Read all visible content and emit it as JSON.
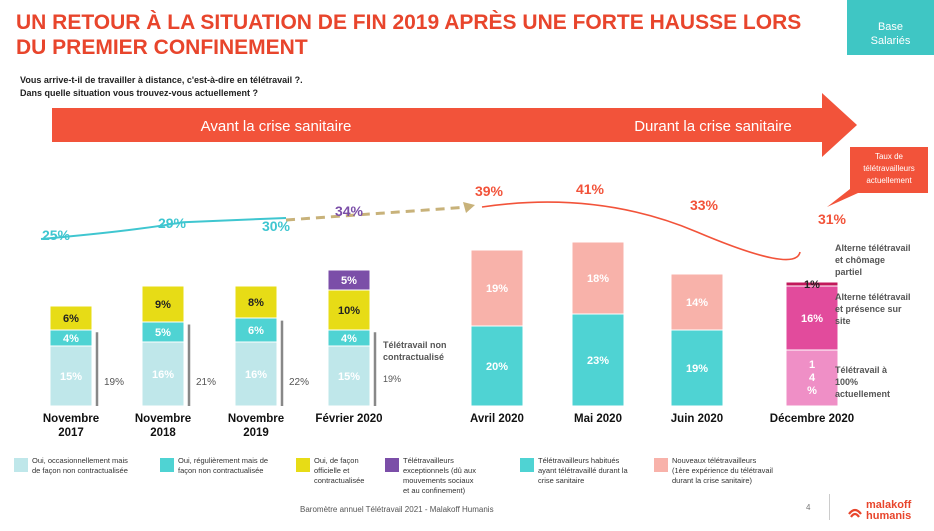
{
  "header": {
    "title": "UN RETOUR À LA SITUATION DE FIN 2019 APRÈS UNE FORTE HAUSSE LORS DU PREMIER CONFINEMENT",
    "badge_line1": "Base",
    "badge_line2": "Salariés",
    "question_line1": "Vous arrive-t-il de travailler à distance, c'est-à-dire en télétravail ?.",
    "question_line2": "Dans quelle situation vous trouvez-vous actuellement ?"
  },
  "arrow": {
    "left_label": "Avant la crise sanitaire",
    "right_label": "Durant la crise sanitaire",
    "color": "#f2533a"
  },
  "rate_label": {
    "line1": "Taux de",
    "line2": "télétravailleurs",
    "line3": "actuellement"
  },
  "colors": {
    "occasional": "#bfe7ea",
    "regular": "#4fd3d3",
    "official": "#e7dc16",
    "exceptional": "#7b4ea8",
    "habitual": "#4fd3d3",
    "new": "#f8b2aa",
    "alt_chomage": "#c2185b",
    "alt_presence": "#e24b9c",
    "full_time": "#ef8fc6",
    "trend_before": "#3fc6d0",
    "trend_during": "#f2533a",
    "dashed": "#c8b27a",
    "gray_bar": "#888888"
  },
  "chart_data": {
    "type": "bar",
    "categories": [
      "Novembre 2017",
      "Novembre 2018",
      "Novembre 2019",
      "Février 2020",
      "Avril 2020",
      "Mai 2020",
      "Juin 2020",
      "Décembre 2020"
    ],
    "category_lines": [
      [
        "Novembre",
        "2017"
      ],
      [
        "Novembre",
        "2018"
      ],
      [
        "Novembre",
        "2019"
      ],
      [
        "Février 2020"
      ],
      [
        "Avril 2020"
      ],
      [
        "Mai 2020"
      ],
      [
        "Juin 2020"
      ],
      [
        "Décembre 2020"
      ]
    ],
    "series": [
      {
        "name": "Oui, occasionnellement mais de façon non contractualisée",
        "key": "occasional",
        "values": [
          15,
          16,
          16,
          15,
          null,
          null,
          null,
          null
        ]
      },
      {
        "name": "Oui, régulièrement mais de façon non contractualisée",
        "key": "regular",
        "values": [
          4,
          5,
          6,
          4,
          null,
          null,
          null,
          null
        ]
      },
      {
        "name": "Oui, de façon officielle et contractualisée",
        "key": "official",
        "values": [
          6,
          9,
          8,
          10,
          null,
          null,
          null,
          null
        ]
      },
      {
        "name": "Télétravailleurs exceptionnels (dû aux mouvements sociaux et au confinement)",
        "key": "exceptional",
        "values": [
          null,
          null,
          null,
          5,
          null,
          null,
          null,
          null
        ]
      },
      {
        "name": "Télétravailleurs habitués ayant télétravaillé durant la crise sanitaire",
        "key": "habitual",
        "values": [
          null,
          null,
          null,
          null,
          20,
          23,
          19,
          null
        ]
      },
      {
        "name": "Nouveaux télétravailleurs (1ère expérience du télétravail durant la crise sanitaire)",
        "key": "new",
        "values": [
          null,
          null,
          null,
          null,
          19,
          18,
          14,
          null
        ]
      },
      {
        "name": "Télétravail à 100% actuellement",
        "key": "full_time",
        "values": [
          null,
          null,
          null,
          null,
          null,
          null,
          null,
          14
        ]
      },
      {
        "name": "Alterne télétravail et présence sur site",
        "key": "alt_presence",
        "values": [
          null,
          null,
          null,
          null,
          null,
          null,
          null,
          16
        ]
      },
      {
        "name": "Alterne télétravail et chômage partiel",
        "key": "alt_chomage",
        "values": [
          null,
          null,
          null,
          null,
          null,
          null,
          null,
          1
        ]
      }
    ],
    "gray_bars": [
      {
        "category_index": 0,
        "value": 19,
        "label": "19%"
      },
      {
        "category_index": 1,
        "value": 21,
        "label": "21%"
      },
      {
        "category_index": 2,
        "value": 22,
        "label": "22%"
      },
      {
        "category_index": 3,
        "value": 19,
        "label": "19%",
        "note_line1": "Télétravail non",
        "note_line2": "contractualisé"
      }
    ],
    "totals": [
      25,
      29,
      30,
      34,
      39,
      41,
      33,
      31
    ],
    "total_labels": [
      "25%",
      "29%",
      "30%",
      "34%",
      "39%",
      "41%",
      "33%",
      "31%"
    ],
    "december_labels": {
      "alt_chomage": [
        "Alterne télétravail",
        "et chômage",
        "partiel"
      ],
      "alt_presence": [
        "Alterne télétravail",
        "et présence sur",
        "site"
      ],
      "full_time": [
        "Télétravail à",
        "100%",
        "actuellement"
      ]
    },
    "full_time_value_chars": [
      "1",
      "4",
      "%"
    ]
  },
  "legend": [
    {
      "key": "occasional",
      "lines": [
        "Oui, occasionnellement mais",
        "de façon non contractualisée"
      ]
    },
    {
      "key": "regular",
      "lines": [
        "Oui, régulièrement mais de",
        "façon non contractualisée"
      ]
    },
    {
      "key": "official",
      "lines": [
        "Oui, de façon",
        "officielle et",
        "contractualisée"
      ]
    },
    {
      "key": "exceptional",
      "lines": [
        "Télétravailleurs",
        "exceptionnels (dû aux",
        "mouvements sociaux",
        "et au confinement)"
      ]
    },
    {
      "key": "habitual",
      "lines": [
        "Télétravailleurs habitués",
        "ayant télétravaillé durant la",
        "crise sanitaire"
      ]
    },
    {
      "key": "new",
      "lines": [
        "Nouveaux télétravailleurs",
        "(1ère expérience du télétravail",
        "durant la crise sanitaire)"
      ]
    }
  ],
  "footer": {
    "text": "Baromètre annuel Télétravail 2021 - Malakoff Humanis",
    "page": "4",
    "logo_line1": "malakoff",
    "logo_line2": "humanis"
  }
}
